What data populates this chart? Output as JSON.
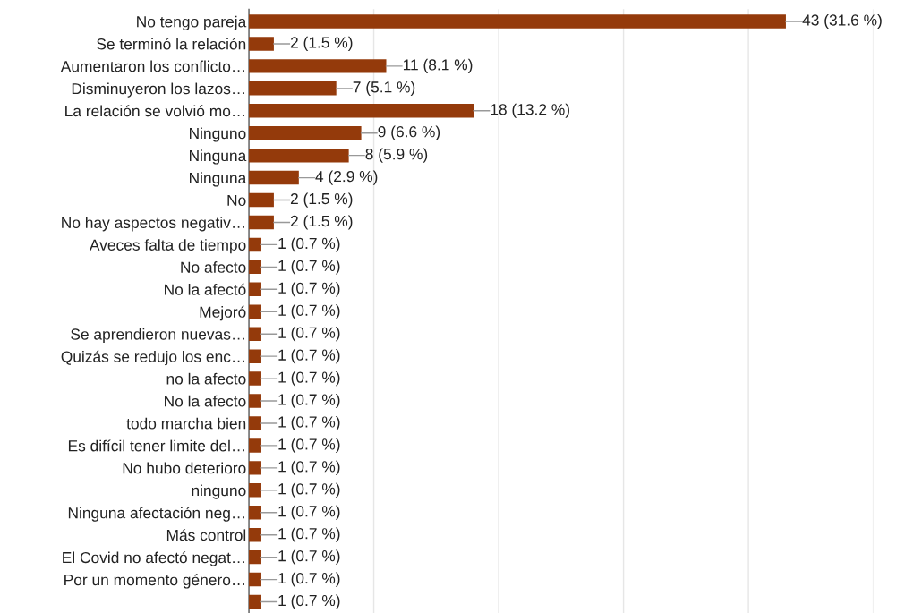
{
  "chart_data": {
    "type": "bar",
    "orientation": "horizontal",
    "color": "#943a0b",
    "grid": "x",
    "categories": [
      "No tengo pareja",
      "Se terminó la relación",
      "Aumentaron los conflicto…",
      "Disminuyeron los lazos…",
      "La relación se volvió mo…",
      "Ninguno",
      "Ninguna",
      "Ninguna",
      "No",
      "No hay aspectos negativ…",
      "Aveces falta de tiempo",
      "No afecto",
      "No la afectó",
      "Mejoró",
      "Se aprendieron nuevas…",
      "Quizás se redujo los enc…",
      "no la afecto",
      "No la afecto",
      "todo marcha bien",
      "Es difícil tener limite del…",
      "No hubo deterioro",
      "ninguno",
      "Ninguna afectación neg…",
      "Más control",
      "El Covid no afectó negat…",
      "Por un momento género…",
      null
    ],
    "values": [
      43,
      2,
      11,
      7,
      18,
      9,
      8,
      4,
      2,
      2,
      1,
      1,
      1,
      1,
      1,
      1,
      1,
      1,
      1,
      1,
      1,
      1,
      1,
      1,
      1,
      1,
      1
    ],
    "value_labels": [
      "43 (31.6 %)",
      "2 (1.5 %)",
      "11 (8.1 %)",
      "7 (5.1 %)",
      "18 (13.2 %)",
      "9 (6.6 %)",
      "8 (5.9 %)",
      "4 (2.9 %)",
      "2 (1.5 %)",
      "2 (1.5 %)",
      "1 (0.7 %)",
      "1 (0.7 %)",
      "1 (0.7 %)",
      "1 (0.7 %)",
      "1 (0.7 %)",
      "1 (0.7 %)",
      "1 (0.7 %)",
      "1 (0.7 %)",
      "1 (0.7 %)",
      "1 (0.7 %)",
      "1 (0.7 %)",
      "1 (0.7 %)",
      "1 (0.7 %)",
      "1 (0.7 %)",
      "1 (0.7 %)",
      "1 (0.7 %)",
      "1 (0.7 %)"
    ],
    "xlim": [
      0,
      50
    ],
    "xticks": [
      {
        "value": 0,
        "label": null
      },
      {
        "value": 10,
        "label": null
      },
      {
        "value": 20,
        "label": null
      },
      {
        "value": 30,
        "label": null
      },
      {
        "value": 40,
        "label": null
      },
      {
        "value": 50,
        "label": null
      }
    ],
    "tick_labels": "y"
  }
}
